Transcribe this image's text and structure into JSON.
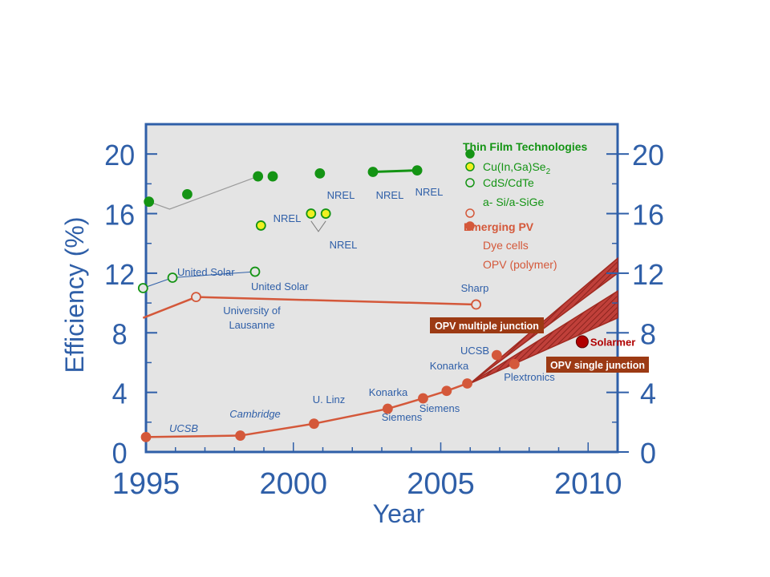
{
  "chart_data": {
    "type": "scatter",
    "xlabel": "Year",
    "ylabel": "Efficiency (%)",
    "xlim": [
      1995,
      2011
    ],
    "ylim": [
      0,
      22
    ],
    "x_ticks": [
      "1995",
      "2000",
      "2005",
      "2010"
    ],
    "y_ticks": [
      "0",
      "4",
      "8",
      "12",
      "16",
      "20"
    ],
    "grid": false,
    "legend_position": "top-right",
    "colors": {
      "axis": "#2f5fa8",
      "plot_bg": "#e4e4e4",
      "green": "#149414",
      "yellow": "#f0f020",
      "orange": "#d4583a",
      "band": "#a02a20",
      "label_box": "#9c3a14",
      "solarmer": "#b00000"
    },
    "legend": {
      "group1_title": "Thin Film Technologies",
      "items1": [
        {
          "label": "Cu(In,Ga)Se",
          "sub": "2",
          "marker": "filled-yellow"
        },
        {
          "label": "CdS/CdTe",
          "marker": "open-green"
        },
        {
          "label": "a- Si/a-SiGe",
          "marker": "filled-green"
        }
      ],
      "group2_title": "Emerging PV",
      "items2": [
        {
          "label": "Dye cells",
          "marker": "open-orange"
        },
        {
          "label": "OPV (polymer)",
          "marker": "filled-orange"
        }
      ]
    },
    "series": [
      {
        "marker": "filled-green",
        "points": [
          [
            1995.1,
            16.8
          ],
          [
            1996.4,
            17.3
          ],
          [
            1998.8,
            18.5
          ],
          [
            1999.3,
            18.5
          ],
          [
            2000.9,
            18.7
          ],
          [
            2002.7,
            18.8
          ],
          [
            2004.2,
            18.9
          ]
        ]
      },
      {
        "marker": "filled-yellow",
        "points": [
          [
            1998.9,
            15.2
          ],
          [
            2000.6,
            16.0
          ],
          [
            2001.1,
            16.0
          ]
        ]
      },
      {
        "marker": "open-green",
        "points": [
          [
            1994.9,
            11.0
          ],
          [
            1995.9,
            11.7
          ],
          [
            1998.7,
            12.1
          ]
        ]
      },
      {
        "marker": "open-orange",
        "points": [
          [
            1996.7,
            10.4
          ],
          [
            2006.2,
            9.9
          ]
        ]
      },
      {
        "marker": "filled-orange",
        "points": [
          [
            1995.0,
            1.0
          ],
          [
            1998.2,
            1.1
          ],
          [
            2000.7,
            1.9
          ],
          [
            2003.2,
            2.9
          ],
          [
            2004.4,
            3.6
          ],
          [
            2005.2,
            4.1
          ],
          [
            2005.9,
            4.6
          ],
          [
            2006.9,
            6.5
          ],
          [
            2007.5,
            5.9
          ]
        ]
      }
    ],
    "solarmer_point": {
      "label": "Solarmer",
      "x": 2009.8,
      "y": 7.4
    },
    "bands": [
      {
        "label": "OPV multiple junction",
        "lower": [
          [
            2006.0,
            4.6
          ],
          [
            2011.0,
            12.0
          ]
        ],
        "upper": [
          [
            2006.0,
            4.6
          ],
          [
            2011.0,
            13.0
          ]
        ]
      },
      {
        "label": "OPV single junction",
        "lower": [
          [
            2006.0,
            4.6
          ],
          [
            2011.0,
            9.0
          ]
        ],
        "upper": [
          [
            2006.0,
            4.6
          ],
          [
            2011.0,
            10.8
          ]
        ]
      }
    ],
    "annotations": [
      {
        "text": "NREL",
        "color": "#2f5fa8"
      },
      {
        "text": "NREL",
        "color": "#2f5fa8"
      },
      {
        "text": "NREL",
        "color": "#2f5fa8"
      },
      {
        "text": "NREL",
        "color": "#2f5fa8"
      },
      {
        "text": "NREL",
        "color": "#2f5fa8"
      },
      {
        "text": "United Solar",
        "color": "#2f5fa8"
      },
      {
        "text": "United Solar",
        "color": "#2f5fa8"
      },
      {
        "text": "University of",
        "color": "#2f5fa8"
      },
      {
        "text": "Lausanne",
        "color": "#2f5fa8"
      },
      {
        "text": "Sharp",
        "color": "#2f5fa8"
      },
      {
        "text": "UCSB",
        "color": "#2f5fa8"
      },
      {
        "text": "UCSB",
        "color": "#2f5fa8"
      },
      {
        "text": "Cambridge",
        "color": "#2f5fa8"
      },
      {
        "text": "U. Linz",
        "color": "#2f5fa8"
      },
      {
        "text": "Konarka",
        "color": "#2f5fa8"
      },
      {
        "text": "Konarka",
        "color": "#2f5fa8"
      },
      {
        "text": "Siemens",
        "color": "#2f5fa8"
      },
      {
        "text": "Siemens",
        "color": "#2f5fa8"
      },
      {
        "text": "Plextronics",
        "color": "#2f5fa8"
      }
    ]
  }
}
